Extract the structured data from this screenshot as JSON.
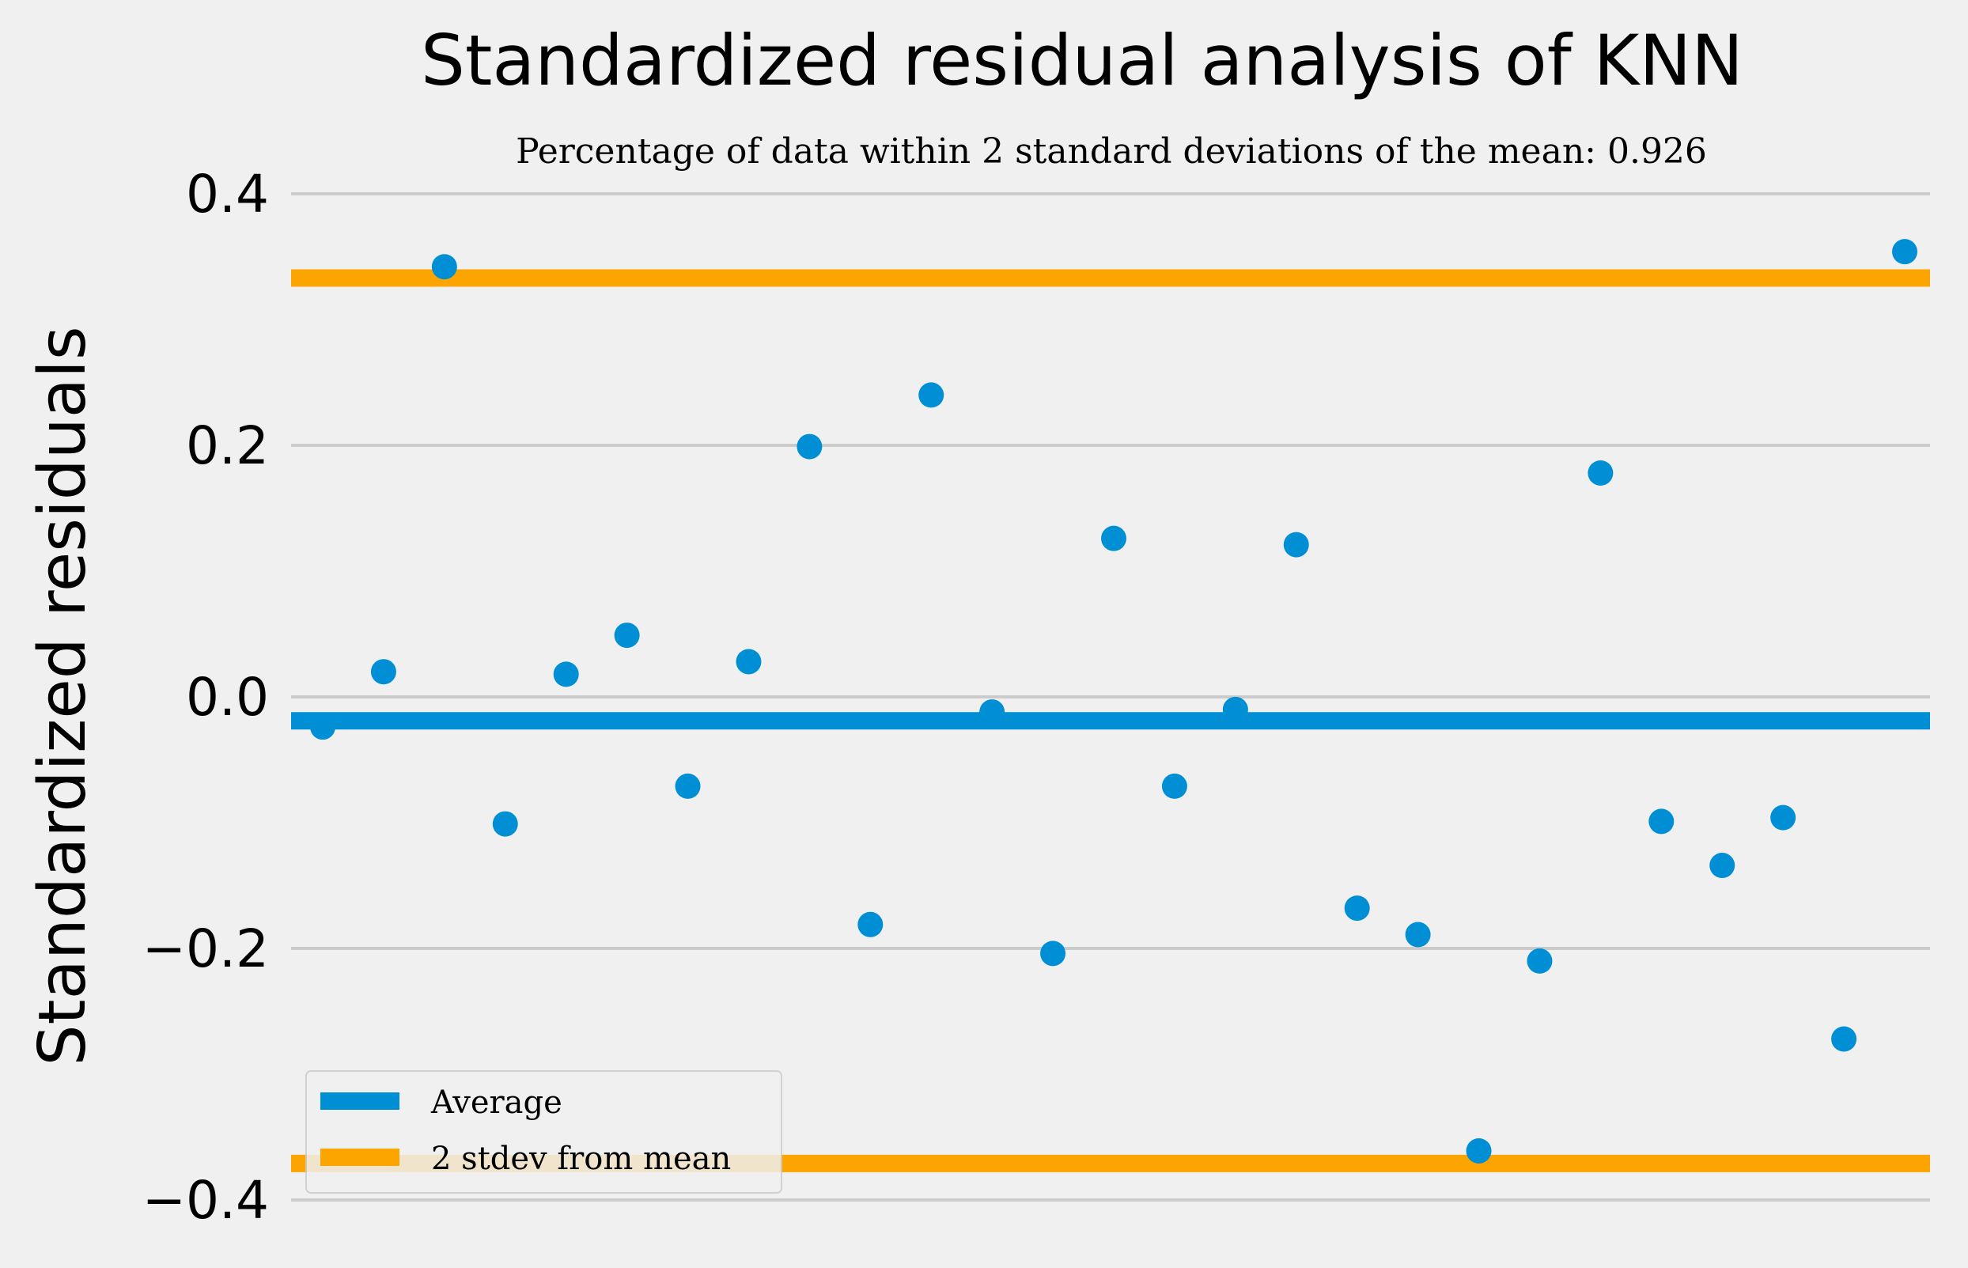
{
  "chart_data": {
    "type": "scatter",
    "title": "Standardized residual analysis of KNN",
    "subtitle": "Percentage of data within 2 standard deviations of the mean: 0.926",
    "xlabel": "",
    "ylabel": "Standardized residuals",
    "ylim": [
      -0.4,
      0.4
    ],
    "xlim": [
      0,
      28
    ],
    "yticks": [
      0.4,
      0.2,
      0.0,
      -0.2,
      -0.4
    ],
    "ytick_labels": [
      "0.4",
      "0.2",
      "0.0",
      "−0.2",
      "−0.4"
    ],
    "grid": "horizontal",
    "x_ticks_visible": false,
    "legend_placement": "lower-left",
    "series": [
      {
        "type": "scatter",
        "color": "#008fd5",
        "x": [
          1,
          2,
          3,
          4,
          5,
          6,
          7,
          8,
          9,
          10,
          11,
          12,
          13,
          14,
          15,
          16,
          17,
          18,
          19,
          20,
          21,
          22,
          23,
          24,
          25,
          26,
          27
        ],
        "y": [
          -0.024,
          0.02,
          0.342,
          -0.101,
          0.018,
          0.049,
          -0.071,
          0.028,
          0.199,
          -0.181,
          0.24,
          -0.012,
          -0.204,
          0.126,
          -0.071,
          -0.01,
          0.121,
          -0.168,
          -0.189,
          -0.361,
          -0.21,
          0.178,
          -0.099,
          -0.134,
          -0.096,
          -0.272,
          0.354
        ]
      }
    ],
    "reference_lines": [
      {
        "name": "Average",
        "y": -0.019,
        "color": "#008fd5"
      },
      {
        "name": "2 stdev from mean",
        "y": 0.333,
        "color": "#fca400"
      },
      {
        "name": "2 stdev from mean",
        "y": -0.371,
        "color": "#fca400"
      }
    ],
    "legend": [
      {
        "label": "Average",
        "color": "#008fd5"
      },
      {
        "label": "2 stdev from mean",
        "color": "#fca400"
      }
    ]
  }
}
